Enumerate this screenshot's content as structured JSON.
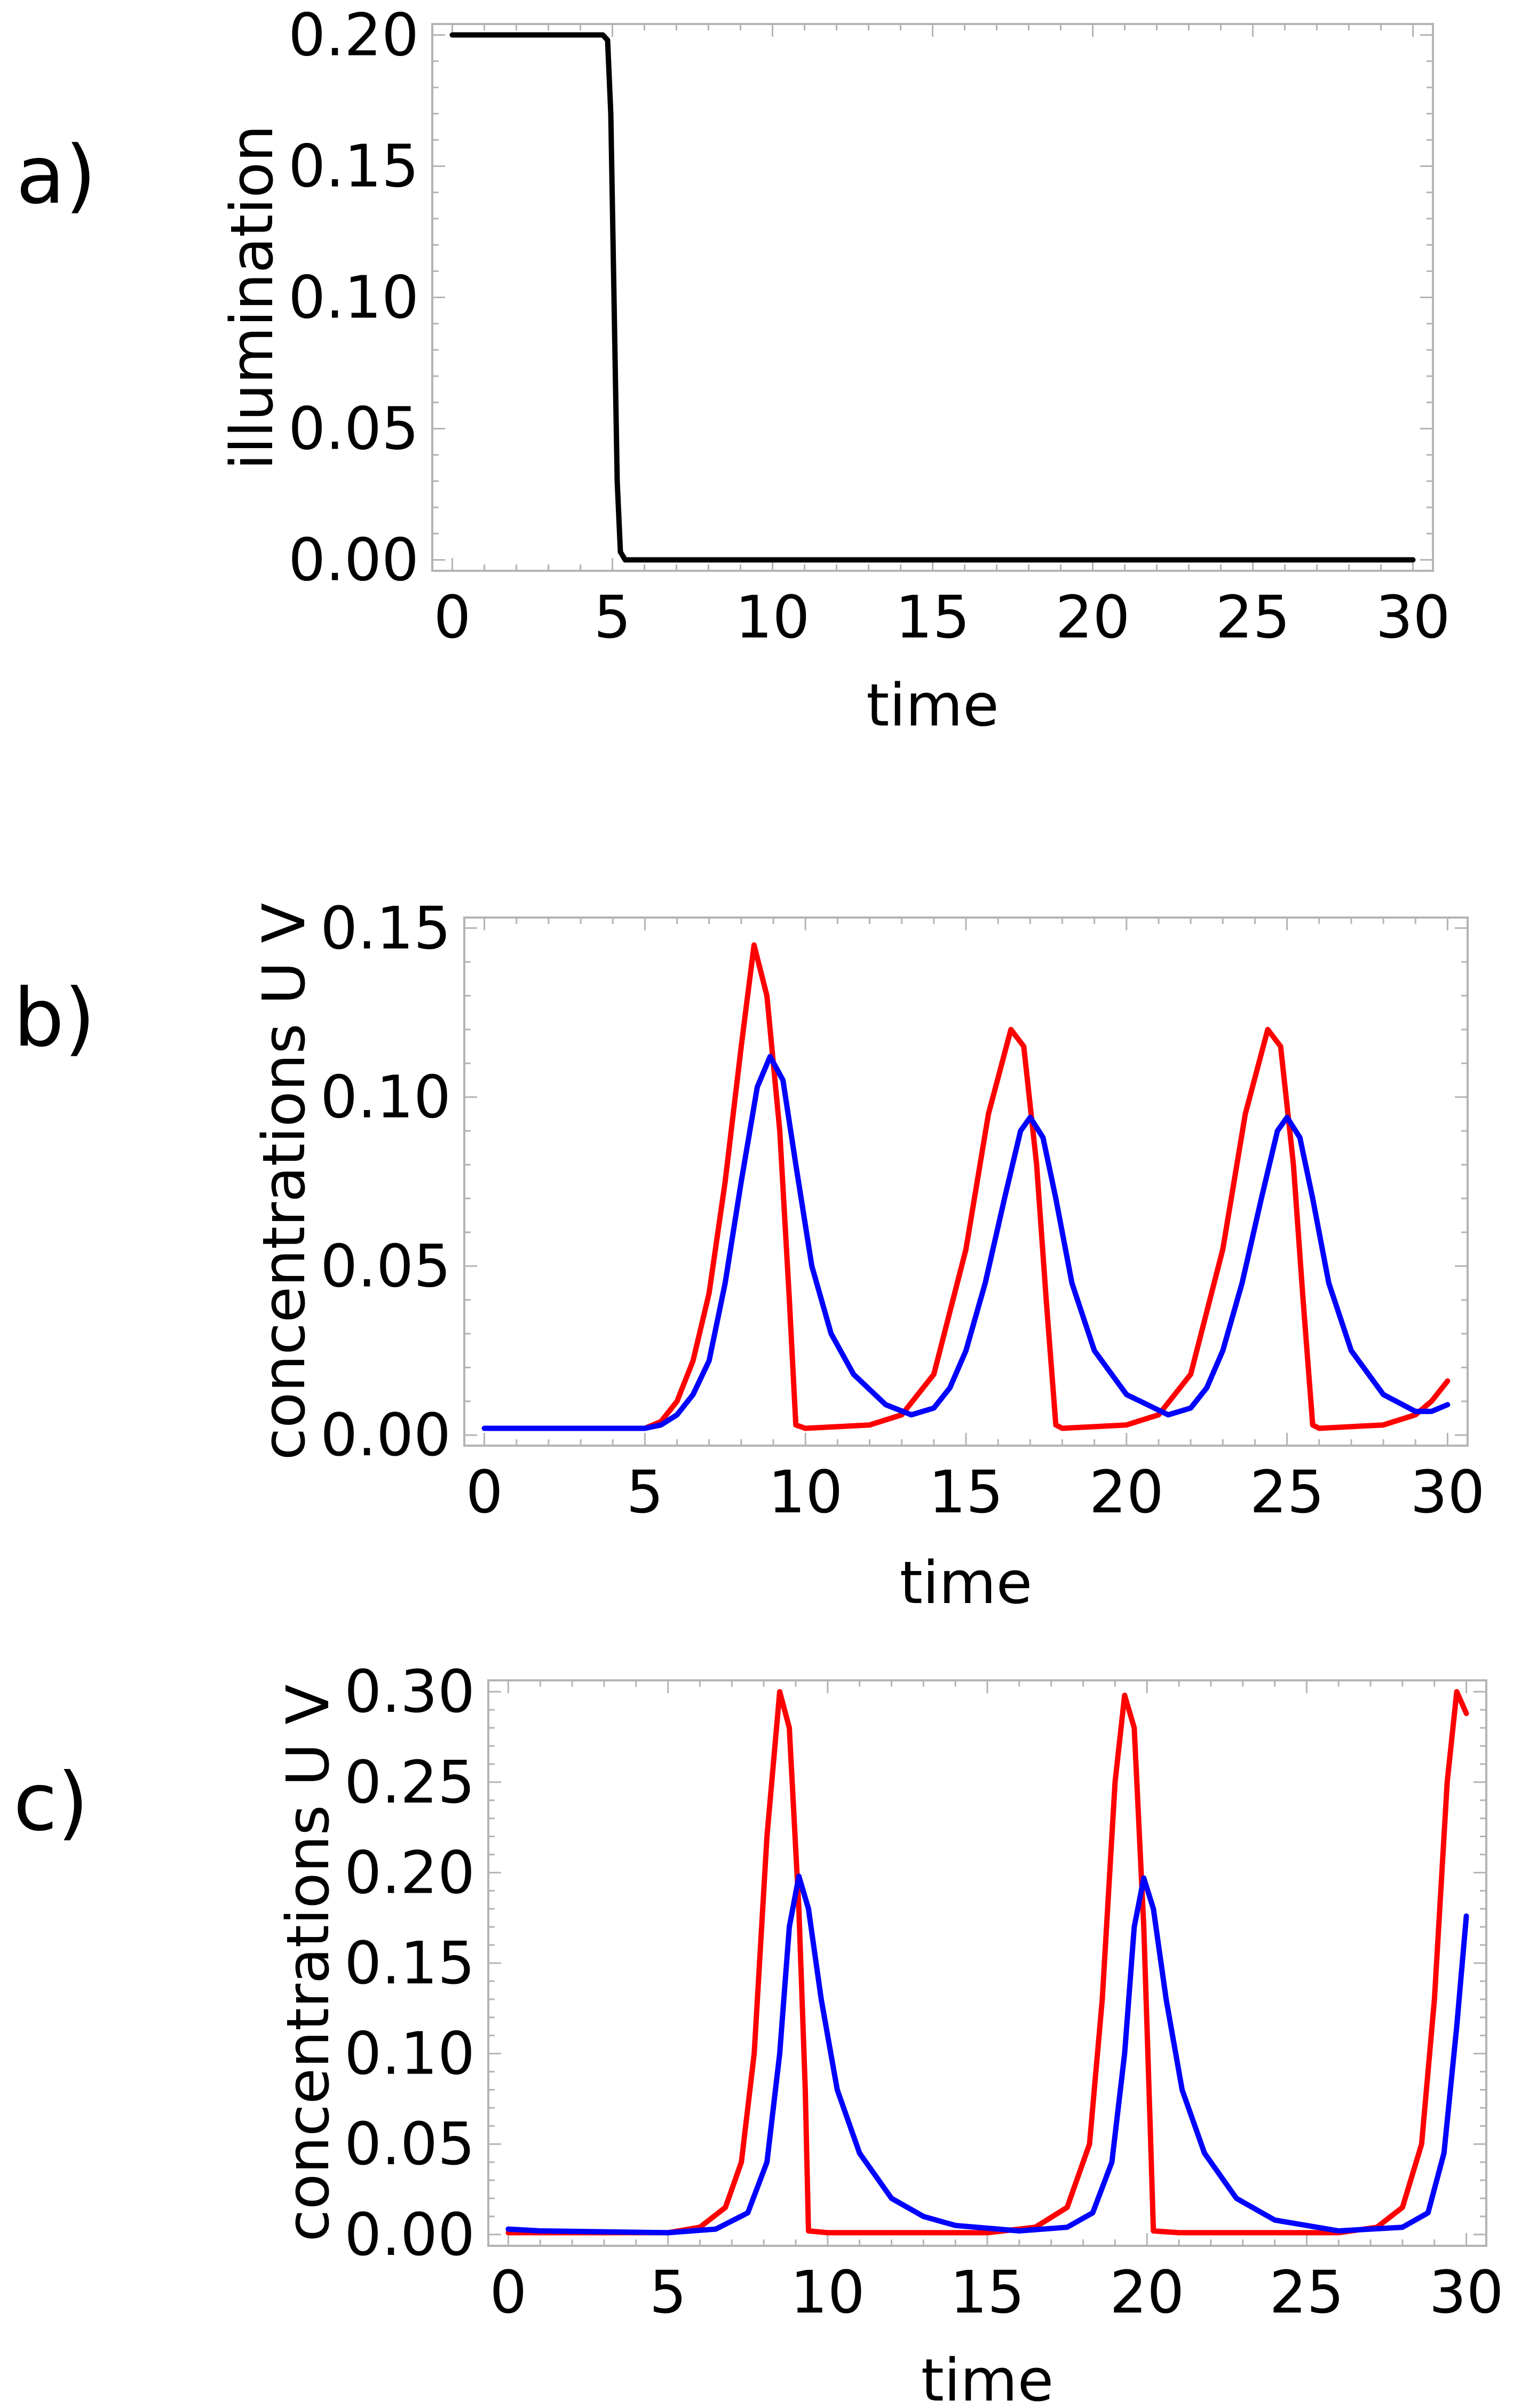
{
  "chart_data": [
    {
      "panel_label": "a)",
      "type": "line",
      "xlabel": "time",
      "ylabel": "illumination",
      "xlim": [
        0,
        30
      ],
      "ylim": [
        0,
        0.2
      ],
      "xticks": [
        0,
        5,
        10,
        15,
        20,
        25,
        30
      ],
      "xtick_labels": [
        "0",
        "5",
        "10",
        "15",
        "20",
        "25",
        "30"
      ],
      "yticks": [
        0,
        0.05,
        0.1,
        0.15,
        0.2
      ],
      "ytick_labels": [
        "0.00",
        "0.05",
        "0.10",
        "0.15",
        "0.20"
      ],
      "series": [
        {
          "name": "illumination",
          "color": "#000000",
          "points": [
            [
              0,
              0.2
            ],
            [
              4.7,
              0.2
            ],
            [
              4.85,
              0.198
            ],
            [
              4.95,
              0.17
            ],
            [
              5.05,
              0.1
            ],
            [
              5.15,
              0.03
            ],
            [
              5.25,
              0.003
            ],
            [
              5.4,
              0
            ],
            [
              30,
              0
            ]
          ]
        }
      ]
    },
    {
      "panel_label": "b)",
      "type": "line",
      "xlabel": "time",
      "ylabel": "concentrations U V",
      "xlim": [
        0,
        30
      ],
      "ylim": [
        0,
        0.15
      ],
      "xticks": [
        0,
        5,
        10,
        15,
        20,
        25,
        30
      ],
      "xtick_labels": [
        "0",
        "5",
        "10",
        "15",
        "20",
        "25",
        "30"
      ],
      "yticks": [
        0,
        0.05,
        0.1,
        0.15
      ],
      "ytick_labels": [
        "0.00",
        "0.05",
        "0.10",
        "0.15"
      ],
      "series": [
        {
          "name": "U",
          "color": "#ff0000",
          "points": [
            [
              0,
              0.002
            ],
            [
              5,
              0.002
            ],
            [
              5.5,
              0.004
            ],
            [
              6,
              0.01
            ],
            [
              6.5,
              0.022
            ],
            [
              7,
              0.042
            ],
            [
              7.5,
              0.075
            ],
            [
              8,
              0.115
            ],
            [
              8.4,
              0.145
            ],
            [
              8.8,
              0.13
            ],
            [
              9.2,
              0.09
            ],
            [
              9.5,
              0.04
            ],
            [
              9.7,
              0.003
            ],
            [
              10,
              0.002
            ],
            [
              12,
              0.003
            ],
            [
              13,
              0.006
            ],
            [
              14,
              0.018
            ],
            [
              15,
              0.055
            ],
            [
              15.7,
              0.095
            ],
            [
              16.4,
              0.12
            ],
            [
              16.8,
              0.115
            ],
            [
              17.2,
              0.08
            ],
            [
              17.5,
              0.04
            ],
            [
              17.8,
              0.003
            ],
            [
              18,
              0.002
            ],
            [
              20,
              0.003
            ],
            [
              21,
              0.006
            ],
            [
              22,
              0.018
            ],
            [
              23,
              0.055
            ],
            [
              23.7,
              0.095
            ],
            [
              24.4,
              0.12
            ],
            [
              24.8,
              0.115
            ],
            [
              25.2,
              0.08
            ],
            [
              25.5,
              0.04
            ],
            [
              25.8,
              0.003
            ],
            [
              26,
              0.002
            ],
            [
              28,
              0.003
            ],
            [
              29,
              0.006
            ],
            [
              29.5,
              0.01
            ],
            [
              30,
              0.016
            ]
          ]
        },
        {
          "name": "V",
          "color": "#0000ff",
          "points": [
            [
              0,
              0.002
            ],
            [
              5,
              0.002
            ],
            [
              5.5,
              0.003
            ],
            [
              6,
              0.006
            ],
            [
              6.5,
              0.012
            ],
            [
              7,
              0.022
            ],
            [
              7.5,
              0.045
            ],
            [
              8,
              0.075
            ],
            [
              8.5,
              0.103
            ],
            [
              8.9,
              0.112
            ],
            [
              9.3,
              0.105
            ],
            [
              9.7,
              0.08
            ],
            [
              10.2,
              0.05
            ],
            [
              10.8,
              0.03
            ],
            [
              11.5,
              0.018
            ],
            [
              12.5,
              0.009
            ],
            [
              13.3,
              0.006
            ],
            [
              14,
              0.008
            ],
            [
              14.5,
              0.014
            ],
            [
              15,
              0.025
            ],
            [
              15.6,
              0.045
            ],
            [
              16.2,
              0.07
            ],
            [
              16.7,
              0.09
            ],
            [
              17,
              0.094
            ],
            [
              17.4,
              0.088
            ],
            [
              17.8,
              0.07
            ],
            [
              18.3,
              0.045
            ],
            [
              19,
              0.025
            ],
            [
              20,
              0.012
            ],
            [
              21.3,
              0.006
            ],
            [
              22,
              0.008
            ],
            [
              22.5,
              0.014
            ],
            [
              23,
              0.025
            ],
            [
              23.6,
              0.045
            ],
            [
              24.2,
              0.07
            ],
            [
              24.7,
              0.09
            ],
            [
              25,
              0.094
            ],
            [
              25.4,
              0.088
            ],
            [
              25.8,
              0.07
            ],
            [
              26.3,
              0.045
            ],
            [
              27,
              0.025
            ],
            [
              28,
              0.012
            ],
            [
              29,
              0.007
            ],
            [
              29.5,
              0.007
            ],
            [
              30,
              0.009
            ]
          ]
        }
      ]
    },
    {
      "panel_label": "c)",
      "type": "line",
      "xlabel": "time",
      "ylabel": "concentrations U V",
      "xlim": [
        0,
        30
      ],
      "ylim": [
        0,
        0.3
      ],
      "xticks": [
        0,
        5,
        10,
        15,
        20,
        25,
        30
      ],
      "xtick_labels": [
        "0",
        "5",
        "10",
        "15",
        "20",
        "25",
        "30"
      ],
      "yticks": [
        0,
        0.05,
        0.1,
        0.15,
        0.2,
        0.25,
        0.3
      ],
      "ytick_labels": [
        "0.00",
        "0.05",
        "0.10",
        "0.15",
        "0.20",
        "0.25",
        "0.30"
      ],
      "series": [
        {
          "name": "U",
          "color": "#ff0000",
          "points": [
            [
              0,
              0.001
            ],
            [
              5,
              0.001
            ],
            [
              6,
              0.004
            ],
            [
              6.8,
              0.015
            ],
            [
              7.3,
              0.04
            ],
            [
              7.7,
              0.1
            ],
            [
              8.1,
              0.22
            ],
            [
              8.5,
              0.3
            ],
            [
              8.8,
              0.28
            ],
            [
              9.1,
              0.18
            ],
            [
              9.3,
              0.08
            ],
            [
              9.4,
              0.002
            ],
            [
              10,
              0.001
            ],
            [
              15,
              0.001
            ],
            [
              16.5,
              0.004
            ],
            [
              17.5,
              0.015
            ],
            [
              18.2,
              0.05
            ],
            [
              18.6,
              0.13
            ],
            [
              19,
              0.25
            ],
            [
              19.3,
              0.298
            ],
            [
              19.6,
              0.28
            ],
            [
              19.9,
              0.17
            ],
            [
              20.1,
              0.06
            ],
            [
              20.2,
              0.002
            ],
            [
              21,
              0.001
            ],
            [
              26,
              0.001
            ],
            [
              27.2,
              0.004
            ],
            [
              28,
              0.015
            ],
            [
              28.6,
              0.05
            ],
            [
              29,
              0.13
            ],
            [
              29.4,
              0.25
            ],
            [
              29.7,
              0.3
            ],
            [
              30,
              0.288
            ]
          ]
        },
        {
          "name": "V",
          "color": "#0000ff",
          "points": [
            [
              0,
              0.003
            ],
            [
              1,
              0.002
            ],
            [
              5,
              0.001
            ],
            [
              6.5,
              0.003
            ],
            [
              7.5,
              0.012
            ],
            [
              8.1,
              0.04
            ],
            [
              8.5,
              0.1
            ],
            [
              8.8,
              0.17
            ],
            [
              9.1,
              0.198
            ],
            [
              9.4,
              0.18
            ],
            [
              9.8,
              0.13
            ],
            [
              10.3,
              0.08
            ],
            [
              11,
              0.045
            ],
            [
              12,
              0.02
            ],
            [
              13,
              0.01
            ],
            [
              14,
              0.005
            ],
            [
              16,
              0.002
            ],
            [
              17.5,
              0.004
            ],
            [
              18.3,
              0.012
            ],
            [
              18.9,
              0.04
            ],
            [
              19.3,
              0.1
            ],
            [
              19.6,
              0.17
            ],
            [
              19.9,
              0.197
            ],
            [
              20.2,
              0.18
            ],
            [
              20.6,
              0.13
            ],
            [
              21.1,
              0.08
            ],
            [
              21.8,
              0.045
            ],
            [
              22.8,
              0.02
            ],
            [
              24,
              0.008
            ],
            [
              26,
              0.002
            ],
            [
              28,
              0.004
            ],
            [
              28.8,
              0.012
            ],
            [
              29.3,
              0.045
            ],
            [
              29.7,
              0.115
            ],
            [
              30,
              0.176
            ]
          ]
        }
      ]
    }
  ]
}
